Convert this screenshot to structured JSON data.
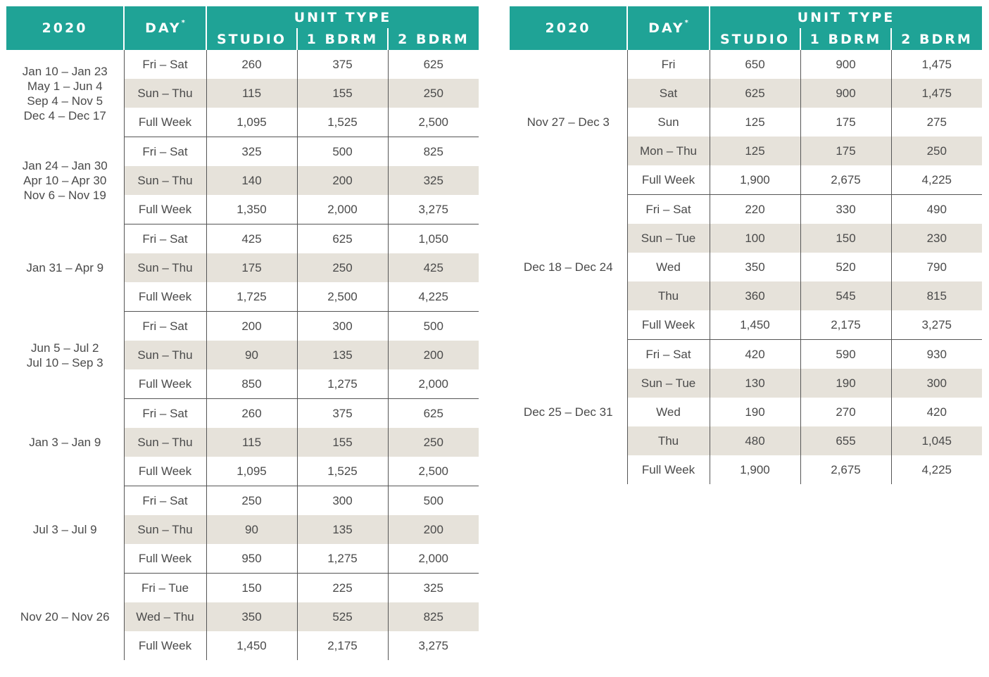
{
  "left": {
    "header": {
      "year": "2020",
      "day": "DAY",
      "day_mark": "*",
      "unit_type": "UNIT TYPE",
      "studio": "STUDIO",
      "one_bdrm": "1 BDRM",
      "two_bdrm": "2 BDRM"
    },
    "groups": [
      {
        "period": [
          "Jan 10 – Jan 23",
          "May 1 – Jun 4",
          "Sep 4 – Nov 5",
          "Dec 4 – Dec 17"
        ],
        "rows": [
          {
            "day": "Fri – Sat",
            "studio": "260",
            "one": "375",
            "two": "625"
          },
          {
            "day": "Sun – Thu",
            "studio": "115",
            "one": "155",
            "two": "250"
          },
          {
            "day": "Full Week",
            "studio": "1,095",
            "one": "1,525",
            "two": "2,500"
          }
        ]
      },
      {
        "period": [
          "Jan 24 – Jan 30",
          "Apr 10 – Apr 30",
          "Nov 6 – Nov 19"
        ],
        "rows": [
          {
            "day": "Fri – Sat",
            "studio": "325",
            "one": "500",
            "two": "825"
          },
          {
            "day": "Sun – Thu",
            "studio": "140",
            "one": "200",
            "two": "325"
          },
          {
            "day": "Full Week",
            "studio": "1,350",
            "one": "2,000",
            "two": "3,275"
          }
        ]
      },
      {
        "period": [
          "Jan 31 – Apr 9"
        ],
        "rows": [
          {
            "day": "Fri – Sat",
            "studio": "425",
            "one": "625",
            "two": "1,050"
          },
          {
            "day": "Sun – Thu",
            "studio": "175",
            "one": "250",
            "two": "425"
          },
          {
            "day": "Full Week",
            "studio": "1,725",
            "one": "2,500",
            "two": "4,225"
          }
        ]
      },
      {
        "period": [
          "Jun 5 – Jul 2",
          "Jul 10 – Sep 3"
        ],
        "rows": [
          {
            "day": "Fri – Sat",
            "studio": "200",
            "one": "300",
            "two": "500"
          },
          {
            "day": "Sun – Thu",
            "studio": "90",
            "one": "135",
            "two": "200"
          },
          {
            "day": "Full Week",
            "studio": "850",
            "one": "1,275",
            "two": "2,000"
          }
        ]
      },
      {
        "period": [
          "Jan 3 – Jan 9"
        ],
        "rows": [
          {
            "day": "Fri – Sat",
            "studio": "260",
            "one": "375",
            "two": "625"
          },
          {
            "day": "Sun – Thu",
            "studio": "115",
            "one": "155",
            "two": "250"
          },
          {
            "day": "Full Week",
            "studio": "1,095",
            "one": "1,525",
            "two": "2,500"
          }
        ]
      },
      {
        "period": [
          "Jul 3 – Jul 9"
        ],
        "rows": [
          {
            "day": "Fri – Sat",
            "studio": "250",
            "one": "300",
            "two": "500"
          },
          {
            "day": "Sun – Thu",
            "studio": "90",
            "one": "135",
            "two": "200"
          },
          {
            "day": "Full Week",
            "studio": "950",
            "one": "1,275",
            "two": "2,000"
          }
        ]
      },
      {
        "period": [
          "Nov 20 – Nov 26"
        ],
        "rows": [
          {
            "day": "Fri – Tue",
            "studio": "150",
            "one": "225",
            "two": "325"
          },
          {
            "day": "Wed – Thu",
            "studio": "350",
            "one": "525",
            "two": "825"
          },
          {
            "day": "Full Week",
            "studio": "1,450",
            "one": "2,175",
            "two": "3,275"
          }
        ]
      }
    ]
  },
  "right": {
    "header": {
      "year": "2020",
      "day": "DAY",
      "day_mark": "*",
      "unit_type": "UNIT TYPE",
      "studio": "STUDIO",
      "one_bdrm": "1 BDRM",
      "two_bdrm": "2 BDRM"
    },
    "groups": [
      {
        "period": [
          "Nov 27 – Dec 3"
        ],
        "rows": [
          {
            "day": "Fri",
            "studio": "650",
            "one": "900",
            "two": "1,475"
          },
          {
            "day": "Sat",
            "studio": "625",
            "one": "900",
            "two": "1,475"
          },
          {
            "day": "Sun",
            "studio": "125",
            "one": "175",
            "two": "275"
          },
          {
            "day": "Mon – Thu",
            "studio": "125",
            "one": "175",
            "two": "250"
          },
          {
            "day": "Full Week",
            "studio": "1,900",
            "one": "2,675",
            "two": "4,225"
          }
        ]
      },
      {
        "period": [
          "Dec 18 – Dec 24"
        ],
        "rows": [
          {
            "day": "Fri – Sat",
            "studio": "220",
            "one": "330",
            "two": "490"
          },
          {
            "day": "Sun – Tue",
            "studio": "100",
            "one": "150",
            "two": "230"
          },
          {
            "day": "Wed",
            "studio": "350",
            "one": "520",
            "two": "790"
          },
          {
            "day": "Thu",
            "studio": "360",
            "one": "545",
            "two": "815"
          },
          {
            "day": "Full Week",
            "studio": "1,450",
            "one": "2,175",
            "two": "3,275"
          }
        ]
      },
      {
        "period": [
          "Dec 25 – Dec 31"
        ],
        "rows": [
          {
            "day": "Fri – Sat",
            "studio": "420",
            "one": "590",
            "two": "930"
          },
          {
            "day": "Sun – Tue",
            "studio": "130",
            "one": "190",
            "two": "300"
          },
          {
            "day": "Wed",
            "studio": "190",
            "one": "270",
            "two": "420"
          },
          {
            "day": "Thu",
            "studio": "480",
            "one": "655",
            "two": "1,045"
          },
          {
            "day": "Full Week",
            "studio": "1,900",
            "one": "2,675",
            "two": "4,225"
          }
        ]
      }
    ]
  },
  "colors": {
    "header_bg": "#1fa396",
    "header_text": "#ffffff",
    "shade_row": "#e6e2da",
    "text": "#4a4a4a",
    "rule": "#555555"
  }
}
